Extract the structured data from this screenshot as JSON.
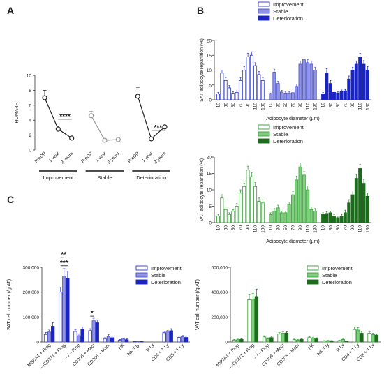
{
  "panels": {
    "a": "A",
    "b": "B",
    "c": "C"
  },
  "chart_data": [
    {
      "panel": "A",
      "type": "scatter",
      "ylabel": "HOMA-IR",
      "ylim": [
        0,
        10
      ],
      "yticks": [
        "0",
        "2",
        "4",
        "6",
        "8",
        "10"
      ],
      "timepoints": [
        "PreOP",
        "1 year",
        "3 years"
      ],
      "groups": [
        {
          "name": "Improvement",
          "values": [
            7.0,
            2.8,
            1.6
          ],
          "errors": [
            1.0,
            0.4,
            0.2
          ],
          "color": "#222222",
          "marker": "open-circle"
        },
        {
          "name": "Stable",
          "values": [
            4.6,
            1.3,
            1.4
          ],
          "errors": [
            0.6,
            0.1,
            0.1
          ],
          "color": "#999999",
          "marker": "open-circle"
        },
        {
          "name": "Deterioration",
          "values": [
            7.2,
            1.5,
            3.1
          ],
          "errors": [
            1.2,
            0.2,
            0.4
          ],
          "color": "#222222",
          "marker": "open-circle"
        }
      ],
      "significance": [
        {
          "group": "Improvement",
          "label": "****"
        },
        {
          "group": "Deterioration",
          "label": "***"
        }
      ]
    },
    {
      "panel": "B-top",
      "type": "bar",
      "ylabel": "SAT adipocyte repartition (%)",
      "xlabel": "Adipocyte diameter (µm)",
      "ylim": [
        0,
        20
      ],
      "yticks": [
        "0",
        "5",
        "10",
        "15",
        "20"
      ],
      "categories": [
        "10",
        "20",
        "30",
        "40",
        "50",
        "60",
        "70",
        "80",
        "90",
        "100",
        "110",
        "120",
        "130"
      ],
      "series": [
        {
          "name": "Improvement",
          "fill": "#ffffff",
          "stroke": "#2b35c8",
          "values": [
            2,
            9,
            6.5,
            4,
            2.2,
            2.5,
            6.5,
            10,
            14.5,
            15,
            11.5,
            8.5,
            6.5
          ],
          "errors": [
            0.5,
            1.0,
            1.0,
            0.8,
            0.5,
            0.5,
            1.0,
            1.2,
            1.2,
            1.2,
            1.0,
            1.0,
            1.0
          ]
        },
        {
          "name": "Stable",
          "fill": "#8f93e2",
          "stroke": "#4a52cc",
          "values": [
            2,
            9.3,
            5.5,
            2.6,
            2.3,
            2.3,
            2.4,
            4.5,
            12,
            13.5,
            12.5,
            12,
            10
          ],
          "errors": [
            0.3,
            1.0,
            0.8,
            0.6,
            0.5,
            0.5,
            0.5,
            0.8,
            1.0,
            1.0,
            1.0,
            1.0,
            1.0
          ]
        },
        {
          "name": "Deterioration",
          "fill": "#1a24c0",
          "stroke": "#1a24c0",
          "values": [
            2,
            9,
            5.5,
            2.5,
            2.3,
            2.8,
            3,
            7,
            10,
            12,
            14.5,
            12,
            10
          ],
          "errors": [
            0.5,
            1.5,
            1.0,
            0.5,
            0.5,
            0.5,
            0.5,
            1.0,
            1.0,
            1.0,
            1.2,
            1.2,
            1.2
          ]
        }
      ]
    },
    {
      "panel": "B-bottom",
      "type": "bar",
      "ylabel": "VAT adipocyte repartition (%)",
      "xlabel": "Adipocyte diameter (µm)",
      "ylim": [
        0,
        20
      ],
      "yticks": [
        "0",
        "5",
        "10",
        "15",
        "20"
      ],
      "categories": [
        "10",
        "20",
        "30",
        "40",
        "50",
        "60",
        "70",
        "80",
        "90",
        "100",
        "110",
        "120",
        "130"
      ],
      "series": [
        {
          "name": "Improvement",
          "fill": "#ffffff",
          "stroke": "#2e9a2e",
          "values": [
            2,
            7.5,
            4,
            2.5,
            3.5,
            5,
            9,
            11,
            16,
            14,
            11,
            6.5,
            6
          ],
          "errors": [
            0.5,
            1.0,
            0.8,
            0.5,
            0.5,
            0.8,
            1.0,
            1.0,
            1.2,
            1.2,
            1.2,
            1.0,
            1.0
          ]
        },
        {
          "name": "Stable",
          "fill": "#7fcf7f",
          "stroke": "#3aa23a",
          "values": [
            2.5,
            3.5,
            4.5,
            3,
            3,
            5.5,
            8.5,
            13,
            17,
            14.5,
            10,
            4,
            3.5
          ],
          "errors": [
            0.5,
            0.8,
            0.8,
            0.5,
            0.5,
            0.8,
            1.0,
            1.2,
            1.2,
            1.2,
            1.2,
            0.8,
            0.8
          ]
        },
        {
          "name": "Deterioration",
          "fill": "#1d6b1d",
          "stroke": "#1d6b1d",
          "values": [
            2.5,
            2.8,
            3,
            2,
            1.5,
            2,
            3,
            6,
            8.5,
            13.5,
            16.5,
            12,
            8
          ],
          "errors": [
            0.5,
            0.5,
            0.5,
            0.5,
            0.5,
            0.5,
            0.8,
            1.0,
            1.2,
            1.2,
            1.2,
            1.2,
            1.0
          ]
        }
      ]
    },
    {
      "panel": "C-left",
      "type": "bar",
      "ylabel": "SAT cell number (/g AT)",
      "ylim": [
        0,
        300000
      ],
      "yticks": [
        "0",
        "100,000",
        "200,000",
        "300,000"
      ],
      "categories": [
        "MSCA1 + Prog",
        "– /CD271 + Prog",
        "– / – Prog",
        "CD206 + Macr",
        "CD206 – Macr",
        "NK",
        "NK T ly",
        "B Ly",
        "CD4 + T Ly",
        "CD8 + T Ly"
      ],
      "series": [
        {
          "name": "Improvement",
          "fill": "#ffffff",
          "stroke": "#2b35c8",
          "values": [
            30000,
            200000,
            42000,
            45000,
            12000,
            7000,
            1500,
            0,
            37000,
            18000
          ],
          "errors": [
            8000,
            20000,
            8000,
            8000,
            5000,
            3000,
            500,
            0,
            6000,
            5000
          ]
        },
        {
          "name": "Stable",
          "fill": "#8f93e2",
          "stroke": "#4a52cc",
          "values": [
            40000,
            265000,
            25000,
            85000,
            22000,
            12000,
            2000,
            0,
            40000,
            21000
          ],
          "errors": [
            8000,
            30000,
            8000,
            10000,
            8000,
            4000,
            500,
            0,
            6000,
            5000
          ]
        },
        {
          "name": "Deterioration",
          "fill": "#1a24c0",
          "stroke": "#1a24c0",
          "values": [
            63000,
            255000,
            50000,
            77000,
            17000,
            9000,
            1500,
            0,
            45000,
            18000
          ],
          "errors": [
            15000,
            30000,
            10000,
            12000,
            6000,
            3000,
            500,
            0,
            8000,
            5000
          ]
        }
      ],
      "significance": [
        {
          "category": "– /CD271 + Prog",
          "label": "**"
        },
        {
          "category": "– /CD271 + Prog",
          "label": "***"
        },
        {
          "category": "CD206 + Macr",
          "label": "*"
        }
      ]
    },
    {
      "panel": "C-right",
      "type": "bar",
      "ylabel": "VAT cell number (/g AT)",
      "ylim": [
        0,
        600000
      ],
      "yticks": [
        "0",
        "200,000",
        "400,000",
        "600,000"
      ],
      "categories": [
        "MSCA1 + Prog",
        "– /CD271 + Prog",
        "– / – Prog",
        "CD206 + Macr",
        "CD206 – Macr",
        "NK",
        "NK T ly",
        "B Ly",
        "CD4 + T Ly",
        "CD8 + T Ly"
      ],
      "series": [
        {
          "name": "Improvement",
          "fill": "#ffffff",
          "stroke": "#2e9a2e",
          "values": [
            15000,
            340000,
            40000,
            65000,
            18000,
            35000,
            8000,
            10000,
            100000,
            70000
          ],
          "errors": [
            5000,
            40000,
            10000,
            10000,
            5000,
            8000,
            3000,
            4000,
            20000,
            10000
          ]
        },
        {
          "name": "Stable",
          "fill": "#7fcf7f",
          "stroke": "#3aa23a",
          "values": [
            18000,
            345000,
            25000,
            70000,
            15000,
            30000,
            10000,
            20000,
            95000,
            60000
          ],
          "errors": [
            5000,
            45000,
            8000,
            10000,
            5000,
            8000,
            3000,
            8000,
            20000,
            10000
          ]
        },
        {
          "name": "Deterioration",
          "fill": "#1d6b1d",
          "stroke": "#1d6b1d",
          "values": [
            20000,
            365000,
            35000,
            72000,
            20000,
            25000,
            8000,
            5000,
            70000,
            55000
          ],
          "errors": [
            6000,
            60000,
            10000,
            10000,
            5000,
            8000,
            3000,
            3000,
            15000,
            10000
          ]
        }
      ]
    }
  ]
}
